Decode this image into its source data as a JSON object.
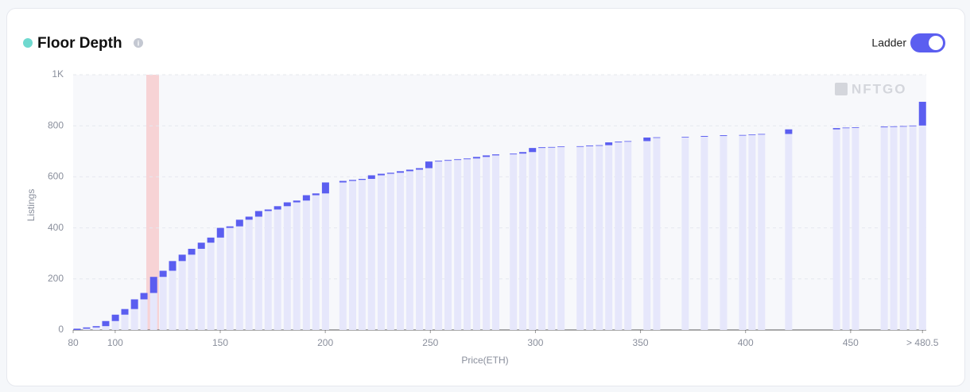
{
  "header": {
    "title": "Floor Depth",
    "toggle_label": "Ladder"
  },
  "watermark": "NFTGO",
  "chart_data": {
    "type": "ladder",
    "x_label": "Price(ETH)",
    "y_label": "Listings",
    "x": [
      81.9,
      86.4,
      91.0,
      95.5,
      100.1,
      104.6,
      109.2,
      113.7,
      118.3,
      122.8,
      127.3,
      131.9,
      136.4,
      141.0,
      145.5,
      150.1,
      154.6,
      159.2,
      163.7,
      168.3,
      172.8,
      177.3,
      181.9,
      186.4,
      191.0,
      195.5,
      200.1,
      208.4,
      213.0,
      217.5,
      222.0,
      226.6,
      231.1,
      235.7,
      240.2,
      244.8,
      249.3,
      253.9,
      258.4,
      263.0,
      267.5,
      272.0,
      276.6,
      281.1,
      289.5,
      294.0,
      298.6,
      303.1,
      307.7,
      312.2,
      321.3,
      325.8,
      330.4,
      334.9,
      339.5,
      344.0,
      353.1,
      357.7,
      371.3,
      380.4,
      389.5,
      398.6,
      403.1,
      407.6,
      420.5,
      443.3,
      447.8,
      452.3,
      466.0,
      470.5,
      475.1,
      479.6,
      484.2
    ],
    "values": [
      5,
      5,
      5,
      20,
      25,
      22,
      38,
      25,
      63,
      24,
      38,
      25,
      23,
      24,
      20,
      38,
      6,
      26,
      12,
      22,
      6,
      13,
      15,
      7,
      21,
      7,
      43,
      6,
      4,
      4,
      14,
      6,
      4,
      6,
      6,
      6,
      26,
      3,
      3,
      3,
      3,
      6,
      6,
      4,
      3,
      6,
      16,
      3,
      1,
      2,
      1,
      3,
      1,
      11,
      3,
      2,
      14,
      1,
      2,
      3,
      3,
      1,
      2,
      2,
      18,
      5,
      2,
      1,
      3,
      1,
      1,
      2,
      93
    ],
    "color": "#5b5ef0",
    "base_color": "#e6e7fb",
    "xlim": [
      80,
      486
    ],
    "xticks": [
      80,
      100,
      150,
      200,
      250,
      300,
      350,
      400,
      450,
      {
        "value": 484.2,
        "label": "> 480.5"
      }
    ],
    "ylim": [
      0,
      1000
    ],
    "yticks": [
      0,
      200,
      400,
      600,
      800,
      {
        "value": 1000,
        "label": "1K"
      }
    ],
    "grid": true
  }
}
